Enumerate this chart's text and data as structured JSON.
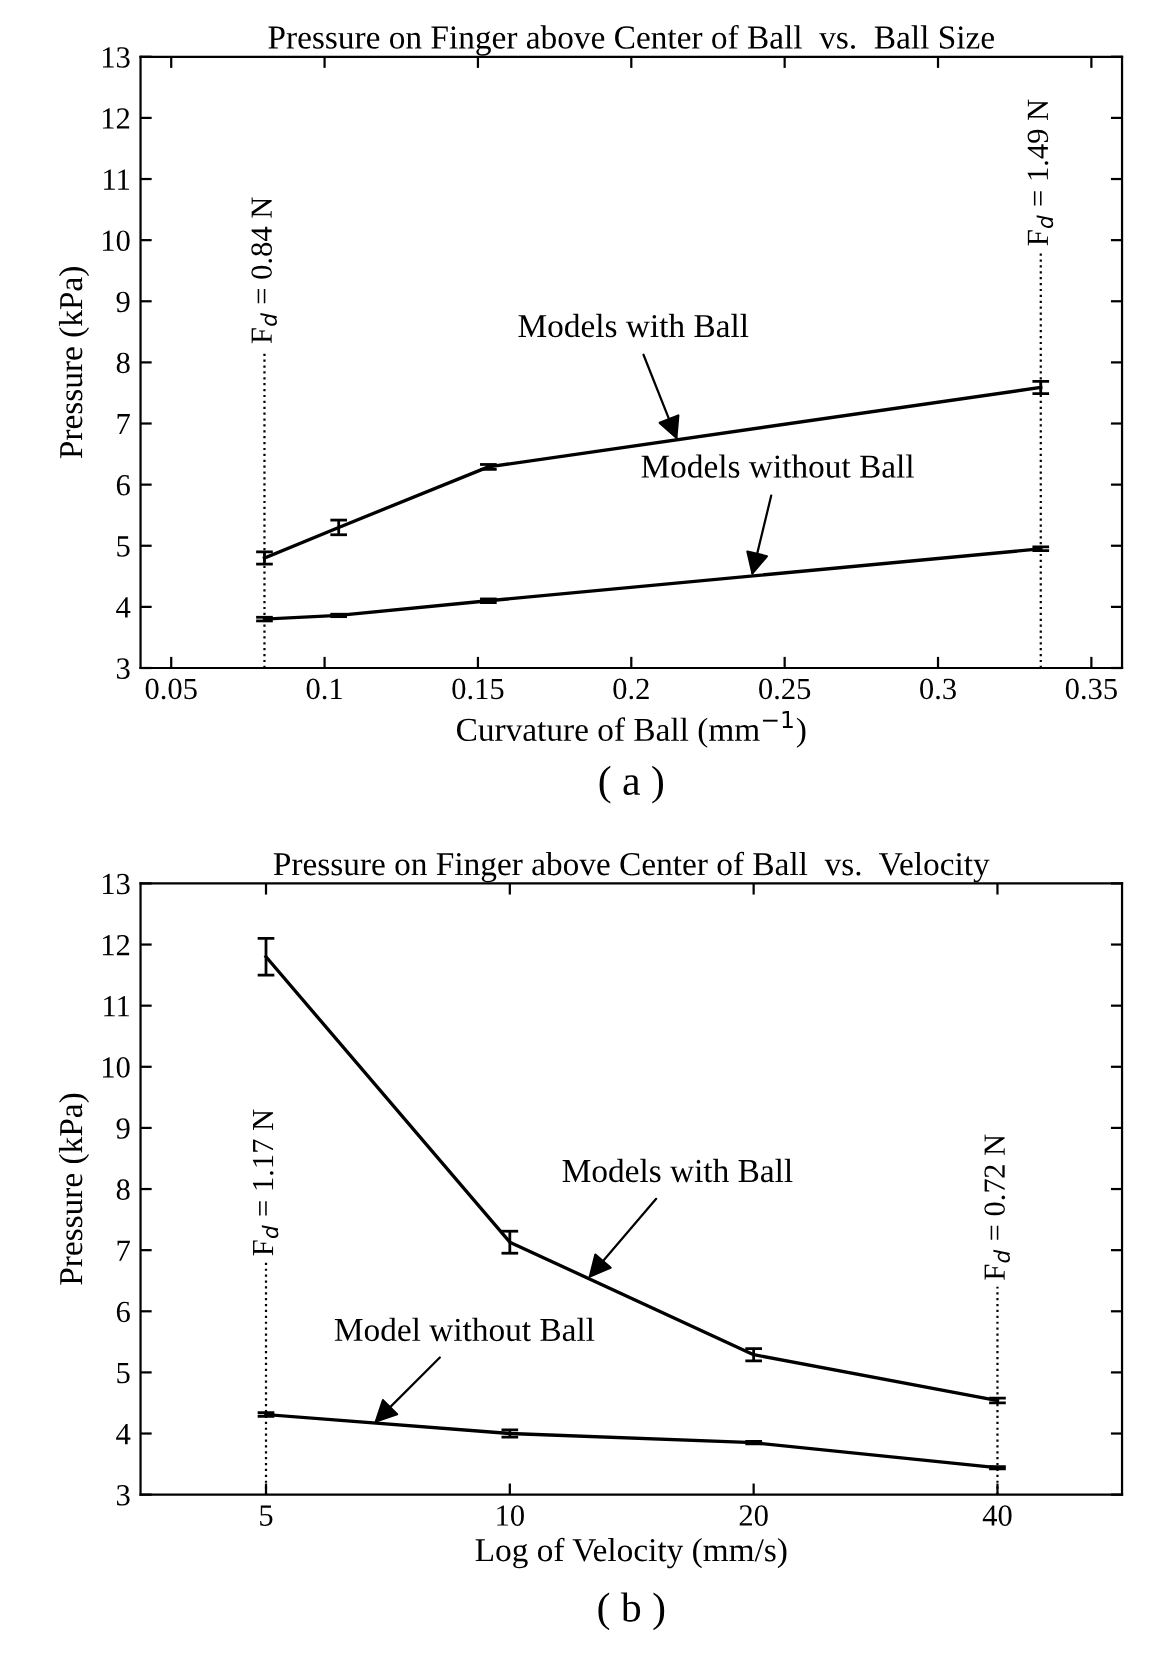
{
  "chart_data": [
    {
      "type": "line",
      "title": "Pressure on Finger above Center of Ball  vs.  Ball Size",
      "xlabel": "Curvature of Ball (mm$^{−1}$)",
      "ylabel": "Pressure (kPa)",
      "x": [
        0.0804,
        0.1046,
        0.1534,
        0.3335
      ],
      "series": [
        {
          "color": "#000000",
          "values": [
            4.8,
            5.3,
            6.29,
            7.59
          ],
          "errors": [
            0.1,
            0.12,
            0.04,
            0.1
          ]
        },
        {
          "color": "#000000",
          "values": [
            3.8,
            3.86,
            4.1,
            4.95
          ],
          "errors": [
            0.03,
            0.02,
            0.03,
            0.03
          ]
        }
      ],
      "xlim": [
        0.04,
        0.36
      ],
      "xticks": [
        0.05,
        0.1,
        0.15,
        0.2,
        0.25,
        0.3,
        0.35
      ],
      "ylim": [
        3,
        13
      ],
      "yticks": [
        3,
        4,
        5,
        6,
        7,
        8,
        9,
        10,
        11,
        12,
        13
      ],
      "ref_lines": [
        {
          "axis": "x",
          "value": 0.0804,
          "line_style": "dotted"
        },
        {
          "axis": "x",
          "value": 0.3335,
          "line_style": "dotted"
        }
      ],
      "annotations": [
        "F$_{d}$ = 0.84 N",
        "F$_{d}$ = 1.49 N",
        {
          "text": "Models with Ball",
          "x": 0.215,
          "y": 6.73
        },
        {
          "text": "Models without Ball",
          "x": 0.2393,
          "y": 4.51
        },
        "( a )"
      ],
      "grid": false,
      "legend": false,
      "marker": "none",
      "line_style": "solid"
    },
    {
      "type": "line",
      "title": "Pressure on Finger above Center of Ball  vs.  Velocity",
      "xlabel": "Log of Velocity (mm/s)",
      "ylabel": "Pressure (kPa)",
      "x": [
        5,
        10,
        20,
        40
      ],
      "series": [
        {
          "color": "#000000",
          "values": [
            11.8,
            7.13,
            5.29,
            4.54
          ],
          "errors": [
            0.3,
            0.18,
            0.1,
            0.04
          ]
        },
        {
          "color": "#000000",
          "values": [
            4.31,
            4.0,
            3.85,
            3.44
          ],
          "errors": [
            0.03,
            0.06,
            0.02,
            0.02
          ]
        }
      ],
      "log": "x",
      "xlim": [
        3.5,
        57
      ],
      "xticks": [
        5,
        10,
        20,
        40
      ],
      "ylim": [
        3,
        13
      ],
      "yticks": [
        3,
        4,
        5,
        6,
        7,
        8,
        9,
        10,
        11,
        12,
        13
      ],
      "ref_lines": [
        {
          "axis": "x",
          "value": 5,
          "line_style": "dotted"
        },
        {
          "axis": "x",
          "value": 40,
          "line_style": "dotted"
        }
      ],
      "annotations": [
        "F$_{d}$ = 1.17 N",
        "F$_{d}$ = 0.72 N",
        {
          "text": "Models with Ball",
          "x": 12.5,
          "y": 6.54
        },
        {
          "text": "Model without Ball",
          "x": 6.8,
          "y": 4.17
        },
        "( b )"
      ],
      "grid": false,
      "legend": false,
      "marker": "none",
      "line_style": "solid"
    }
  ]
}
